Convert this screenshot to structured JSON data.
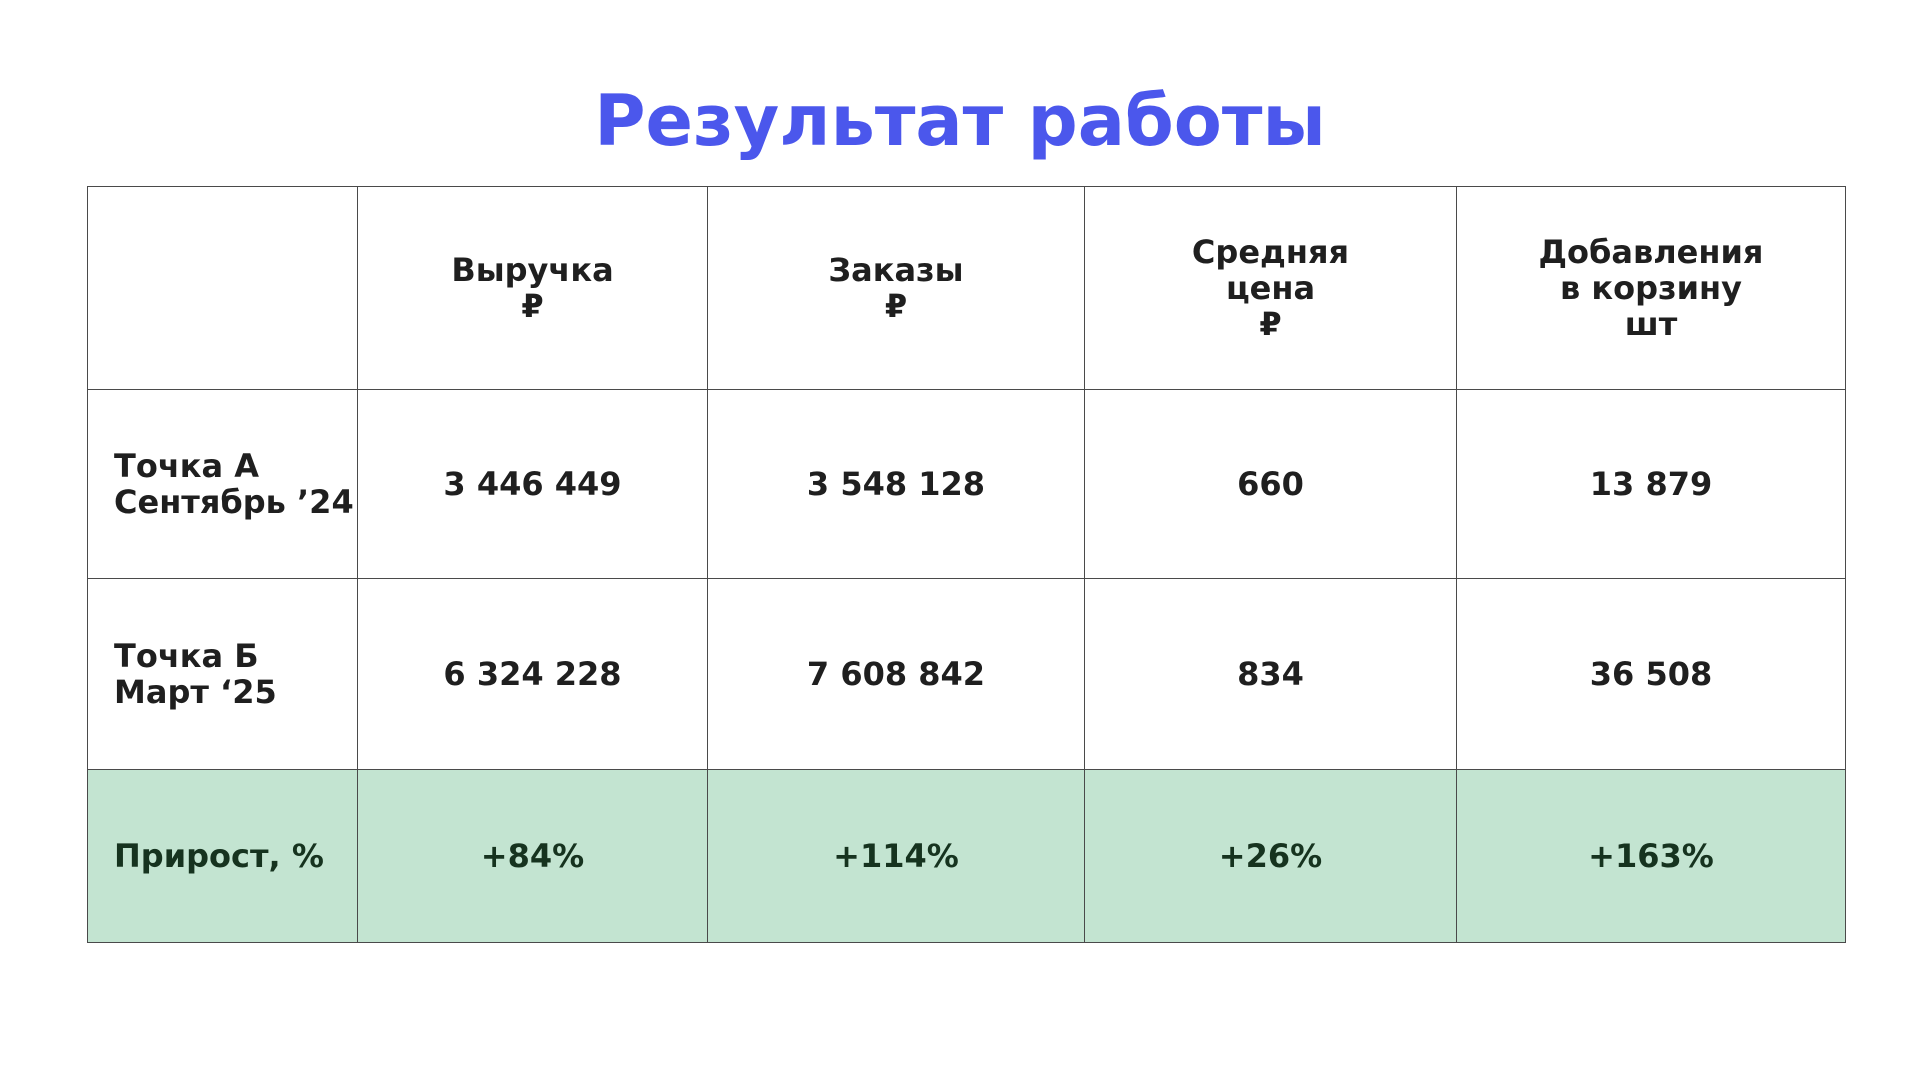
{
  "title": "Результат работы",
  "table": {
    "headers": [
      {
        "lines": [
          ""
        ]
      },
      {
        "lines": [
          "Выручка",
          "₽"
        ]
      },
      {
        "lines": [
          "Заказы",
          "₽"
        ]
      },
      {
        "lines": [
          "Средняя",
          "цена",
          "₽"
        ]
      },
      {
        "lines": [
          "Добавления",
          "в корзину",
          "шт"
        ]
      }
    ],
    "rows": [
      {
        "label_lines": [
          "Точка А",
          "Сентябрь ’24"
        ],
        "values": [
          "3 446 449",
          "3 548 128",
          "660",
          "13 879"
        ]
      },
      {
        "label_lines": [
          "Точка Б",
          "Март ‘25"
        ],
        "values": [
          "6 324 228",
          "7 608 842",
          "834",
          "36 508"
        ]
      },
      {
        "label_lines": [
          "Прирост, %"
        ],
        "values": [
          "+84%",
          "+114%",
          "+26%",
          "+163%"
        ]
      }
    ]
  },
  "colors": {
    "title": "#4b57ec",
    "growth_row_background": "#c3e4d1",
    "border": "#4a4a4a"
  }
}
